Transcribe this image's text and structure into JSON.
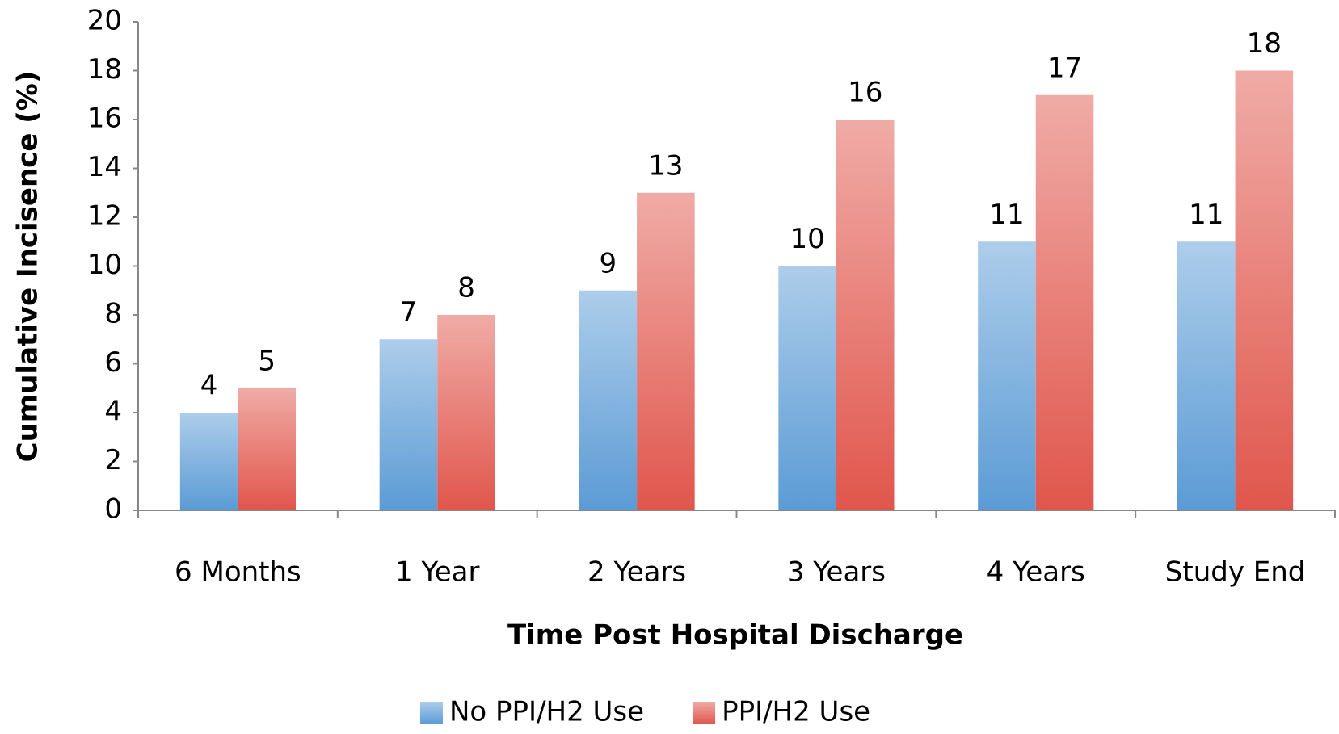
{
  "chart_data": {
    "type": "bar",
    "categories": [
      "6 Months",
      "1 Year",
      "2 Years",
      "3 Years",
      "4 Years",
      "Study End"
    ],
    "series": [
      {
        "name": "No PPI/H2 Use",
        "color": "#5b9bd5",
        "values": [
          4,
          7,
          9,
          10,
          11,
          11
        ]
      },
      {
        "name": "PPI/H2 Use",
        "color": "#e0564c",
        "values": [
          5,
          8,
          13,
          16,
          17,
          18
        ]
      }
    ],
    "x_label": "Time Post Hospital Discharge",
    "y_label": "Cumulative Incisence (%)",
    "ylim": [
      0,
      20
    ],
    "yticks": [
      0,
      2,
      4,
      6,
      8,
      10,
      12,
      14,
      16,
      18,
      20
    ],
    "grid": false,
    "legend": "bottom"
  }
}
